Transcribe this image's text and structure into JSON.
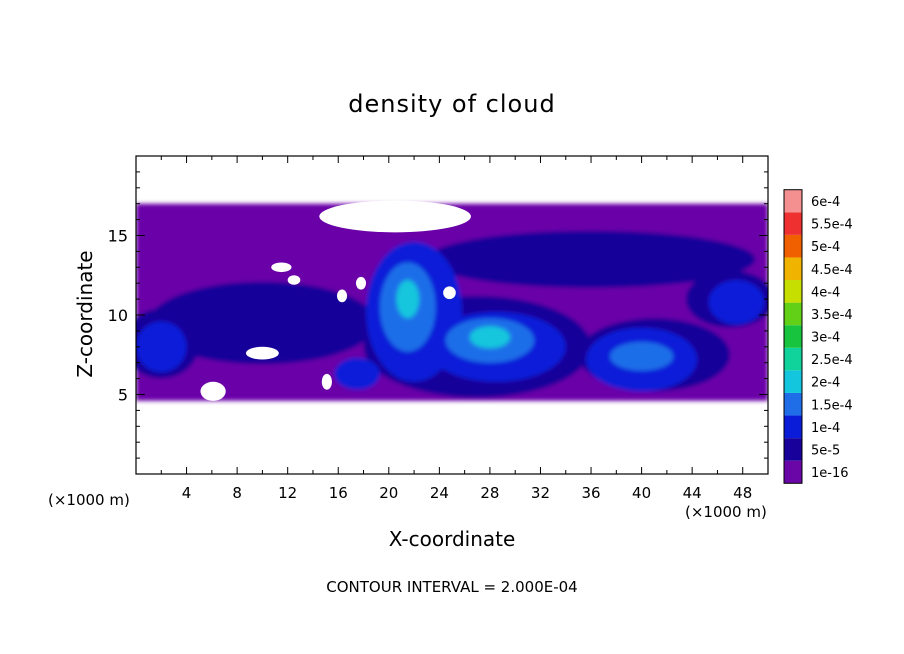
{
  "chart_data": {
    "type": "heatmap",
    "title": "density of cloud",
    "xlabel": "X-coordinate",
    "ylabel": "Z-coordinate",
    "x_unit_left": "(×1000 m)",
    "x_unit_right": "(×1000 m)",
    "footer": "CONTOUR INTERVAL = 2.000E-04",
    "xlim": [
      0,
      50
    ],
    "ylim": [
      0,
      20
    ],
    "x_ticks": [
      4,
      8,
      12,
      16,
      20,
      24,
      28,
      32,
      36,
      40,
      44,
      48
    ],
    "x_tick_labels": [
      "4",
      "8",
      "12",
      "16",
      "20",
      "24",
      "28",
      "32",
      "36",
      "40",
      "44",
      "48"
    ],
    "y_ticks": [
      5,
      10,
      15
    ],
    "y_tick_labels": [
      "5",
      "10",
      "15"
    ],
    "colorbar": {
      "levels": [
        "1e-16",
        "5e-5",
        "1e-4",
        "1.5e-4",
        "2e-4",
        "2.5e-4",
        "3e-4",
        "3.5e-4",
        "4e-4",
        "4.5e-4",
        "5e-4",
        "5.5e-4",
        "6e-4"
      ],
      "colors": [
        "#6a06a8",
        "#18009a",
        "#0b1cd8",
        "#1f6ee8",
        "#14c6dd",
        "#10d39c",
        "#18c43e",
        "#62d017",
        "#c6de00",
        "#f0b400",
        "#f06000",
        "#ee3030",
        "#f59090"
      ]
    },
    "cloud_layer_z": [
      4.6,
      17.0
    ],
    "regions": [
      {
        "level": 0,
        "shape": "band",
        "x": [
          0,
          50
        ],
        "z": [
          4.6,
          17.0
        ]
      },
      {
        "level": 1,
        "shape": "blob",
        "cx": 10,
        "cz": 9.5,
        "rx": 9,
        "rz": 2.6
      },
      {
        "level": 1,
        "shape": "blob",
        "cx": 36,
        "cz": 13.5,
        "rx": 13,
        "rz": 1.8
      },
      {
        "level": 1,
        "shape": "blob",
        "cx": 47,
        "cz": 11,
        "rx": 3.5,
        "rz": 1.8
      },
      {
        "level": 1,
        "shape": "blob",
        "cx": 27,
        "cz": 8,
        "rx": 9,
        "rz": 3.2
      },
      {
        "level": 1,
        "shape": "blob",
        "cx": 41,
        "cz": 7.5,
        "rx": 6,
        "rz": 2.3
      },
      {
        "level": 1,
        "shape": "blob",
        "cx": 2,
        "cz": 8.2,
        "rx": 3,
        "rz": 2.2
      },
      {
        "level": 2,
        "shape": "blob",
        "cx": 2,
        "cz": 8.0,
        "rx": 2.0,
        "rz": 1.6
      },
      {
        "level": 2,
        "shape": "blob",
        "cx": 22,
        "cz": 10.2,
        "rx": 3.8,
        "rz": 4.4
      },
      {
        "level": 2,
        "shape": "blob",
        "cx": 28.5,
        "cz": 8,
        "rx": 5.5,
        "rz": 2.2
      },
      {
        "level": 2,
        "shape": "blob",
        "cx": 40,
        "cz": 7.2,
        "rx": 4.4,
        "rz": 2.0
      },
      {
        "level": 2,
        "shape": "blob",
        "cx": 47.5,
        "cz": 10.8,
        "rx": 2.2,
        "rz": 1.4
      },
      {
        "level": 2,
        "shape": "blob",
        "cx": 17.5,
        "cz": 6.3,
        "rx": 1.8,
        "rz": 1.0
      },
      {
        "level": 3,
        "shape": "blob",
        "cx": 21.5,
        "cz": 10.5,
        "rx": 2.2,
        "rz": 2.8
      },
      {
        "level": 3,
        "shape": "blob",
        "cx": 28,
        "cz": 8.4,
        "rx": 3.5,
        "rz": 1.4
      },
      {
        "level": 3,
        "shape": "blob",
        "cx": 40,
        "cz": 7.4,
        "rx": 2.5,
        "rz": 0.9
      },
      {
        "level": 4,
        "shape": "blob",
        "cx": 21.5,
        "cz": 11,
        "rx": 0.9,
        "rz": 1.2
      },
      {
        "level": 4,
        "shape": "blob",
        "cx": 28,
        "cz": 8.6,
        "rx": 1.6,
        "rz": 0.7
      }
    ],
    "gaps": [
      {
        "cx": 10,
        "cz": 7.6,
        "rx": 1.3,
        "rz": 0.4
      },
      {
        "cx": 11.5,
        "cz": 13.0,
        "rx": 0.8,
        "rz": 0.3
      },
      {
        "cx": 12.5,
        "cz": 12.2,
        "rx": 0.5,
        "rz": 0.3
      },
      {
        "cx": 17.8,
        "cz": 12.0,
        "rx": 0.4,
        "rz": 0.4
      },
      {
        "cx": 16.3,
        "cz": 11.2,
        "rx": 0.4,
        "rz": 0.4
      },
      {
        "cx": 24.8,
        "cz": 11.4,
        "rx": 0.5,
        "rz": 0.4
      },
      {
        "cx": 15.1,
        "cz": 5.8,
        "rx": 0.4,
        "rz": 0.5
      },
      {
        "cx": 6.1,
        "cz": 5.2,
        "rx": 1.0,
        "rz": 0.6
      },
      {
        "cx": 20.5,
        "cz": 16.2,
        "rx": 6,
        "rz": 1.0
      }
    ]
  }
}
